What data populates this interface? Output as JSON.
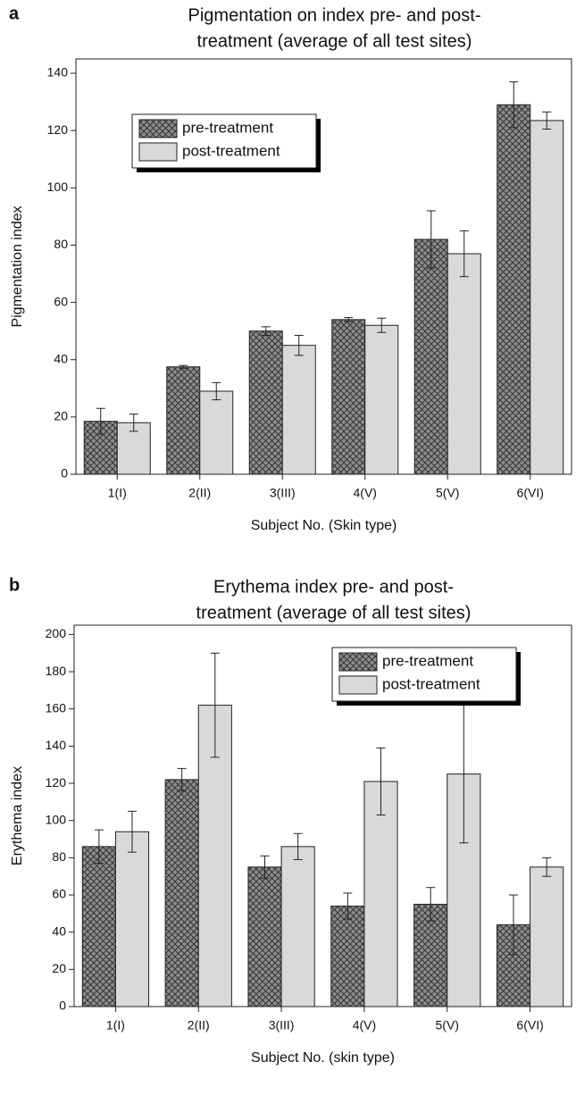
{
  "chart_data": [
    {
      "type": "bar",
      "panel_label": "a",
      "title": [
        "Pigmentation on index pre- and post-",
        "treatment (average of all test sites)"
      ],
      "xlabel": "Subject No. (Skin type)",
      "ylabel": "Pigmentation index",
      "categories": [
        "1(I)",
        "2(II)",
        "3(III)",
        "4(V)",
        "5(V)",
        "6(VI)"
      ],
      "series": [
        {
          "name": "pre-treatment",
          "color": "#8c8c8c",
          "hatch": "cross",
          "values": [
            18.5,
            37.5,
            50,
            54,
            82,
            129
          ],
          "errors": [
            4.5,
            0.5,
            1.5,
            0.7,
            10,
            8
          ]
        },
        {
          "name": "post-treatment",
          "color": "#d9d9d9",
          "values": [
            18,
            29,
            45,
            52,
            77,
            123.5
          ],
          "errors": [
            3,
            3,
            3.5,
            2.5,
            8,
            3
          ]
        }
      ],
      "ylim": [
        0,
        145
      ],
      "yticks": [
        0,
        20,
        40,
        60,
        80,
        100,
        120,
        140
      ],
      "legend": "upper-left"
    },
    {
      "type": "bar",
      "panel_label": "b",
      "title": [
        "Erythema index pre- and post-",
        "treatment (average of all test sites)"
      ],
      "xlabel": "Subject No. (skin type)",
      "ylabel": "Erythema index",
      "categories": [
        "1(I)",
        "2(II)",
        "3(III)",
        "4(V)",
        "5(V)",
        "6(VI)"
      ],
      "series": [
        {
          "name": "pre-treatment",
          "color": "#8c8c8c",
          "hatch": "cross",
          "values": [
            86,
            122,
            75,
            54,
            55,
            44
          ],
          "errors": [
            9,
            6,
            6,
            7,
            9,
            16
          ]
        },
        {
          "name": "post-treatment",
          "color": "#d9d9d9",
          "values": [
            94,
            162,
            86,
            121,
            125,
            75
          ],
          "errors": [
            11,
            28,
            7,
            18,
            37,
            5
          ]
        }
      ],
      "ylim": [
        0,
        205
      ],
      "yticks": [
        0,
        20,
        40,
        60,
        80,
        100,
        120,
        140,
        160,
        180,
        200
      ],
      "legend": "upper-right"
    }
  ]
}
